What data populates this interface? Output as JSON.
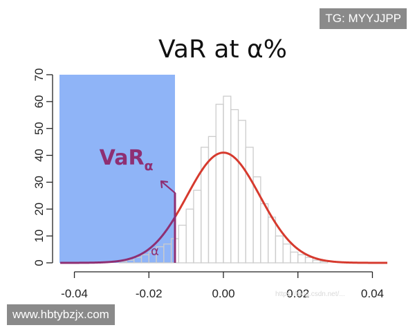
{
  "watermarks": {
    "top_right": "TG: MYYJJPP",
    "bottom_left": "www.hbtybzjx.com",
    "faint": "https://blog.csdn.net/..."
  },
  "chart_data": {
    "type": "bar",
    "title": "VaR at α%",
    "xlabel": "",
    "ylabel": "",
    "xlim": [
      -0.044,
      0.044
    ],
    "ylim": [
      0,
      70
    ],
    "x_ticks": [
      -0.04,
      -0.02,
      0.0,
      0.02,
      0.04
    ],
    "x_tick_labels": [
      "-0.04",
      "-0.02",
      "0.00",
      "0.02",
      "0.04"
    ],
    "y_ticks": [
      0,
      10,
      20,
      30,
      40,
      50,
      60,
      70
    ],
    "y_tick_labels": [
      "0",
      "10",
      "20",
      "30",
      "40",
      "50",
      "60",
      "70"
    ],
    "histogram": {
      "bin_width": 0.002,
      "bin_starts": [
        -0.028,
        -0.026,
        -0.024,
        -0.022,
        -0.02,
        -0.018,
        -0.016,
        -0.014,
        -0.012,
        -0.01,
        -0.008,
        -0.006,
        -0.004,
        -0.002,
        0.0,
        0.002,
        0.004,
        0.006,
        0.008,
        0.01,
        0.012,
        0.014,
        0.016,
        0.018,
        0.02,
        0.022,
        0.024,
        0.026
      ],
      "counts": [
        0.5,
        1,
        2,
        3,
        4,
        6,
        7,
        9,
        14,
        20,
        27,
        43,
        47,
        59,
        62,
        57,
        53,
        43,
        32,
        22,
        17,
        10,
        7,
        4,
        3,
        2,
        1,
        0.5
      ],
      "edge_color": "#cccccc"
    },
    "normal_curve": {
      "mean": 0.0,
      "sd": 0.0098,
      "peak": 41,
      "color": "#d63a2e",
      "tail_color": "#8e2f73"
    },
    "shaded_region": {
      "x_start": -0.044,
      "x_end": -0.013,
      "color": "#8fb4f7"
    },
    "var_line": {
      "x": -0.013,
      "top": 26,
      "color": "#8e2f73"
    },
    "annotations": {
      "var_main": "VaR",
      "var_sub": "α",
      "alpha": "α"
    }
  }
}
